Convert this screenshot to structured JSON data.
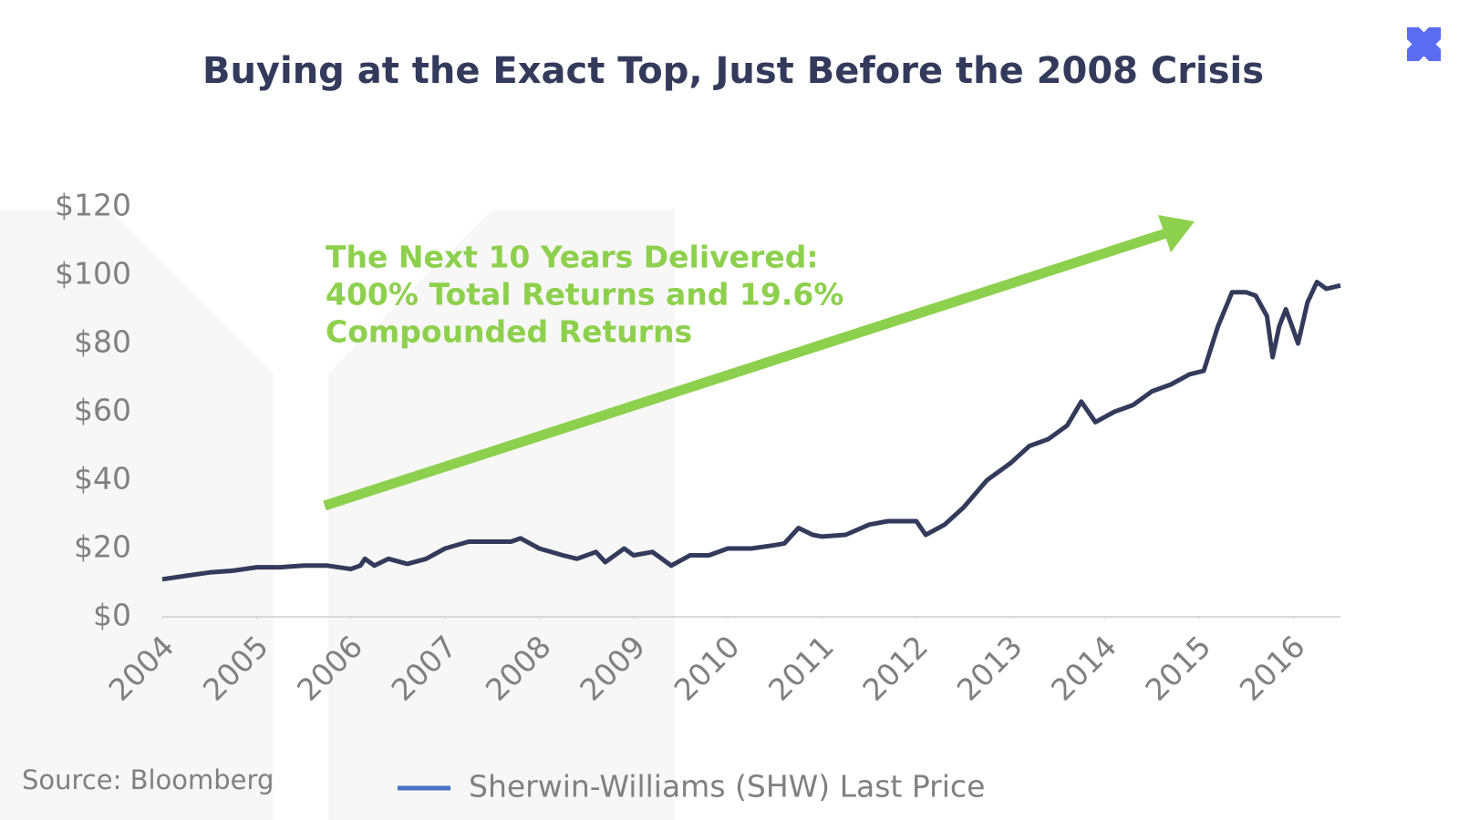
{
  "chart_data": {
    "type": "line",
    "title": "Buying at the Exact Top, Just Before the 2008 Crisis",
    "annotation": [
      "The Next 10 Years Delivered:",
      "400% Total Returns and 19.6%",
      "Compounded Returns"
    ],
    "source": "Source: Bloomberg",
    "legend_color": "#4472c4",
    "annotation_color": "#8dd04d",
    "series": [
      {
        "name": "Sherwin-Williams (SHW) Last Price",
        "color": "#333a5c",
        "x": [
          2004.0,
          2004.25,
          2004.5,
          2004.75,
          2005.0,
          2005.25,
          2005.5,
          2005.75,
          2006.0,
          2006.1,
          2006.15,
          2006.25,
          2006.4,
          2006.6,
          2006.8,
          2007.0,
          2007.25,
          2007.5,
          2007.7,
          2007.8,
          2008.0,
          2008.25,
          2008.4,
          2008.6,
          2008.7,
          2008.9,
          2009.0,
          2009.2,
          2009.3,
          2009.4,
          2009.6,
          2009.8,
          2010.0,
          2010.25,
          2010.5,
          2010.6,
          2010.75,
          2010.9,
          2011.0,
          2011.25,
          2011.5,
          2011.7,
          2012.0,
          2012.1,
          2012.3,
          2012.5,
          2012.75,
          2013.0,
          2013.2,
          2013.4,
          2013.6,
          2013.75,
          2013.9,
          2014.1,
          2014.3,
          2014.5,
          2014.7,
          2014.9,
          2015.05,
          2015.2,
          2015.35,
          2015.5,
          2015.6,
          2015.72,
          2015.78,
          2015.85,
          2015.92,
          2016.0,
          2016.05,
          2016.15,
          2016.25,
          2016.35,
          2016.5
        ],
        "values": [
          11,
          12,
          13,
          13.5,
          14.5,
          14.5,
          15,
          15,
          14,
          15,
          17,
          15,
          17,
          15.5,
          17,
          20,
          22,
          22,
          22,
          23,
          20,
          18,
          17,
          19,
          16,
          20,
          18,
          19,
          17,
          15,
          18,
          18,
          20,
          20,
          21,
          21.5,
          26,
          24,
          23.5,
          24,
          27,
          28,
          28,
          24,
          27,
          32,
          40,
          45,
          50,
          52,
          56,
          63,
          57,
          60,
          62,
          66,
          68,
          71,
          72,
          85,
          95,
          95,
          94,
          88,
          76,
          85,
          90,
          84,
          80,
          92,
          98,
          96,
          97
        ]
      }
    ],
    "xlim": [
      2004,
      2016.5
    ],
    "xticks": [
      2004,
      2005,
      2006,
      2007,
      2008,
      2009,
      2010,
      2011,
      2012,
      2013,
      2014,
      2015,
      2016
    ],
    "ylim": [
      0,
      120
    ],
    "yticks": [
      {
        "value": 0,
        "label": "$0"
      },
      {
        "value": 20,
        "label": "$20"
      },
      {
        "value": 40,
        "label": "$40"
      },
      {
        "value": 60,
        "label": "$60"
      },
      {
        "value": 80,
        "label": "$80"
      },
      {
        "value": 100,
        "label": "$100"
      },
      {
        "value": 120,
        "label": "$120"
      }
    ]
  }
}
